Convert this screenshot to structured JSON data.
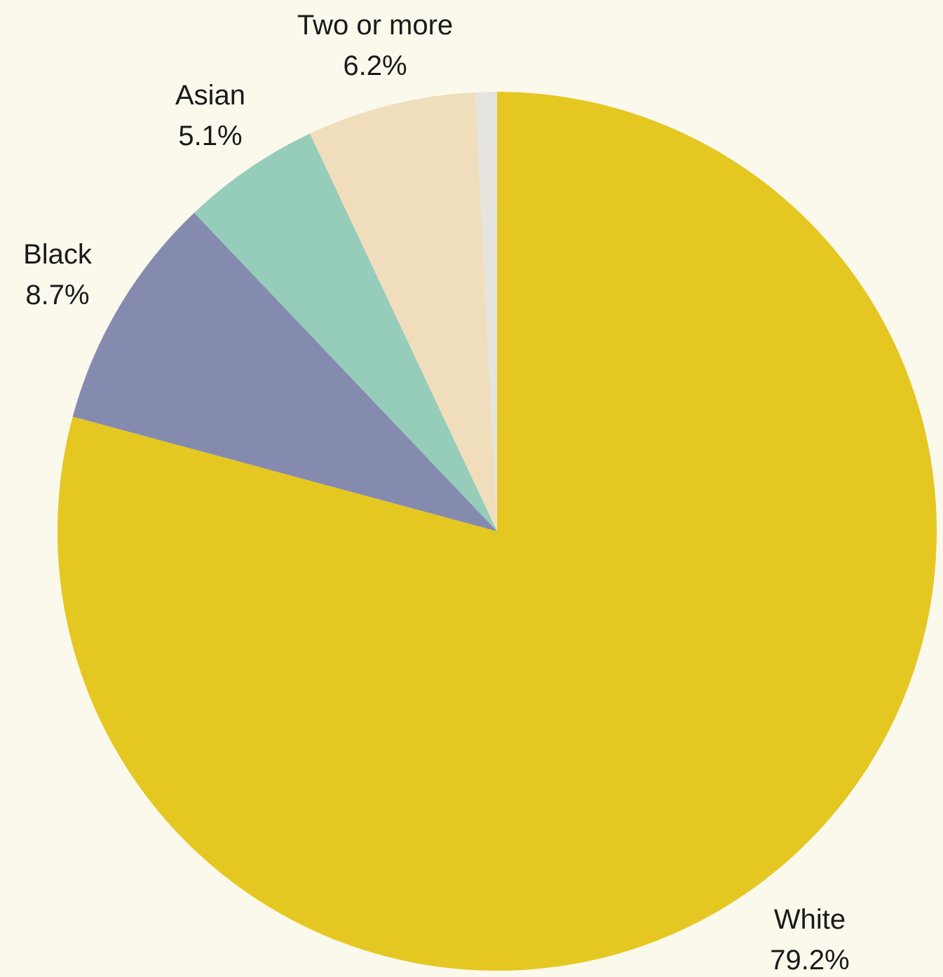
{
  "chart_data": {
    "type": "pie",
    "start": "top",
    "direction": "clockwise",
    "slices": [
      {
        "label": "White",
        "value": 79.2,
        "value_label": "79.2%",
        "color": "#e5c722"
      },
      {
        "label": "Black",
        "value": 8.7,
        "value_label": "8.7%",
        "color": "#858baf"
      },
      {
        "label": "Asian",
        "value": 5.1,
        "value_label": "5.1%",
        "color": "#95ccba"
      },
      {
        "label": "Two or more",
        "value": 6.2,
        "value_label": "6.2%",
        "color": "#f0ddbc"
      },
      {
        "label": "",
        "value": 0.8,
        "value_label": "",
        "color": "#e6e4df"
      }
    ],
    "background": "#fbf8ec"
  }
}
